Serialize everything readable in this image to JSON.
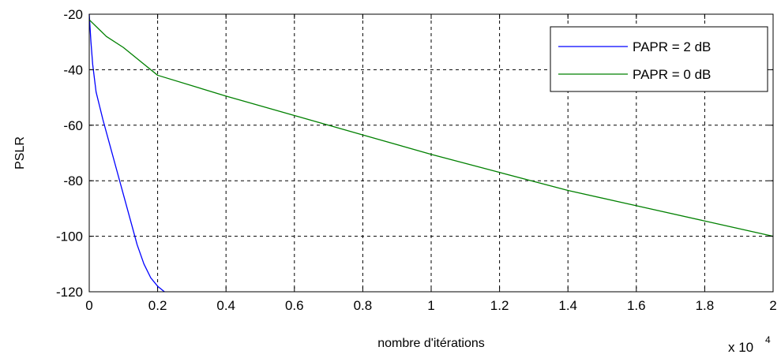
{
  "chart_data": {
    "type": "line",
    "title": "",
    "xlabel": "nombre d'itérations",
    "ylabel": "PSLR",
    "x_multiplier_base": "x 10",
    "x_multiplier_exp": "4",
    "xlim": [
      0,
      2
    ],
    "ylim": [
      -120,
      -20
    ],
    "x_ticks": [
      0,
      0.2,
      0.4,
      0.6,
      0.8,
      1,
      1.2,
      1.4,
      1.6,
      1.8,
      2
    ],
    "x_tick_labels": [
      "0",
      "0.2",
      "0.4",
      "0.6",
      "0.8",
      "1",
      "1.2",
      "1.4",
      "1.6",
      "1.8",
      "2"
    ],
    "y_ticks": [
      -120,
      -100,
      -80,
      -60,
      -40,
      -20
    ],
    "y_tick_labels": [
      "-120",
      "-100",
      "-80",
      "-60",
      "-40",
      "-20"
    ],
    "grid": true,
    "legend_position": "top-right",
    "series": [
      {
        "name": "PAPR = 2 dB",
        "color": "#0000ff",
        "x": [
          0,
          0.005,
          0.01,
          0.02,
          0.04,
          0.06,
          0.08,
          0.1,
          0.12,
          0.14,
          0.16,
          0.18,
          0.2,
          0.22
        ],
        "y": [
          -20,
          -30,
          -38,
          -48,
          -58,
          -67,
          -76,
          -85,
          -94,
          -103,
          -110,
          -115,
          -118,
          -120
        ]
      },
      {
        "name": "PAPR = 0 dB",
        "color": "#008000",
        "x": [
          0,
          0.05,
          0.1,
          0.15,
          0.2,
          0.4,
          0.6,
          0.8,
          1.0,
          1.2,
          1.4,
          1.6,
          1.8,
          2.0
        ],
        "y": [
          -22,
          -28,
          -32,
          -37,
          -42,
          -49.5,
          -56.5,
          -63.5,
          -70.5,
          -77,
          -83.5,
          -89,
          -94.5,
          -100
        ]
      }
    ]
  }
}
